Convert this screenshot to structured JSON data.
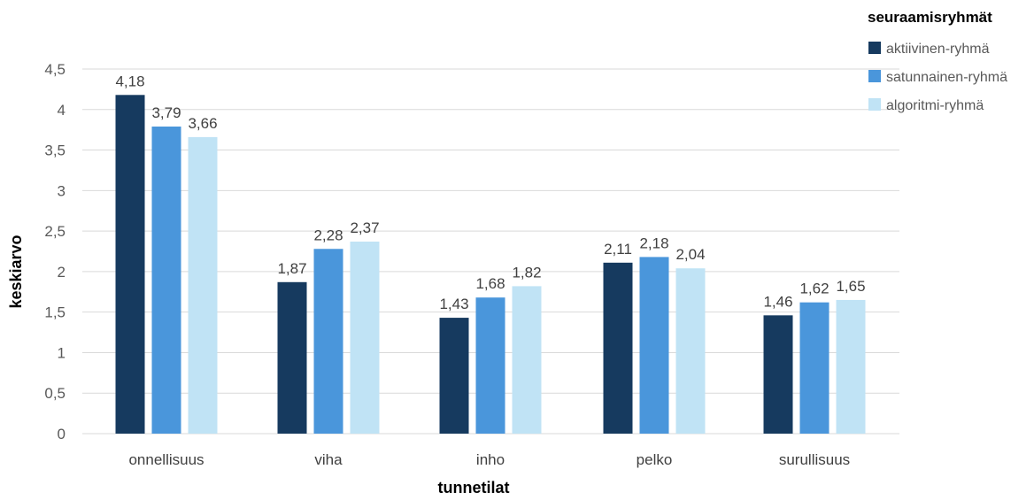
{
  "chart_data": {
    "type": "bar",
    "categories": [
      "onnellisuus",
      "viha",
      "inho",
      "pelko",
      "surullisuus"
    ],
    "series": [
      {
        "name": "aktiivinen-ryhmä",
        "values": [
          4.18,
          1.87,
          1.43,
          2.11,
          1.46
        ],
        "labels": [
          "4,18",
          "1,87",
          "1,43",
          "2,11",
          "1,46"
        ],
        "color": "#163a5f"
      },
      {
        "name": "satunnainen-ryhmä",
        "values": [
          3.79,
          2.28,
          1.68,
          2.18,
          1.62
        ],
        "labels": [
          "3,79",
          "2,28",
          "1,68",
          "2,18",
          "1,62"
        ],
        "color": "#4a96db"
      },
      {
        "name": "algoritmi-ryhmä",
        "values": [
          3.66,
          2.37,
          1.82,
          2.04,
          1.65
        ],
        "labels": [
          "3,66",
          "2,37",
          "1,82",
          "2,04",
          "1,65"
        ],
        "color": "#c0e3f5"
      }
    ],
    "xlabel": "tunnetilat",
    "ylabel": "keskiarvo",
    "ylim": [
      0,
      4.5
    ],
    "yticks": [
      "0",
      "0,5",
      "1",
      "1,5",
      "2",
      "2,5",
      "3",
      "3,5",
      "4",
      "4,5"
    ],
    "legend_title": "seuraamisryhmät",
    "legend_position": "top-right",
    "grid": true
  }
}
